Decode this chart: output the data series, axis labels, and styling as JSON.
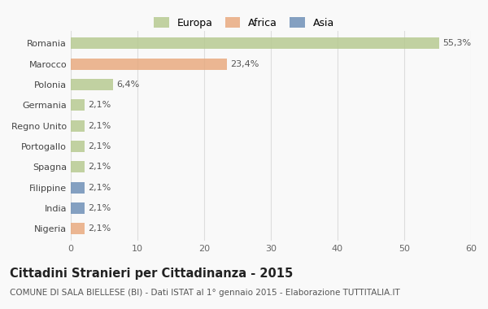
{
  "categories": [
    "Romania",
    "Marocco",
    "Polonia",
    "Germania",
    "Regno Unito",
    "Portogallo",
    "Spagna",
    "Filippine",
    "India",
    "Nigeria"
  ],
  "values": [
    55.3,
    23.4,
    6.4,
    2.1,
    2.1,
    2.1,
    2.1,
    2.1,
    2.1,
    2.1
  ],
  "labels": [
    "55,3%",
    "23,4%",
    "6,4%",
    "2,1%",
    "2,1%",
    "2,1%",
    "2,1%",
    "2,1%",
    "2,1%",
    "2,1%"
  ],
  "colors": [
    "#b5c98e",
    "#e8a87c",
    "#b5c98e",
    "#b5c98e",
    "#b5c98e",
    "#b5c98e",
    "#b5c98e",
    "#6b8db5",
    "#6b8db5",
    "#e8a87c"
  ],
  "legend_labels": [
    "Europa",
    "Africa",
    "Asia"
  ],
  "legend_colors": [
    "#b5c98e",
    "#e8a87c",
    "#6b8db5"
  ],
  "title": "Cittadini Stranieri per Cittadinanza - 2015",
  "subtitle": "COMUNE DI SALA BIELLESE (BI) - Dati ISTAT al 1° gennaio 2015 - Elaborazione TUTTITALIA.IT",
  "xlim": [
    0,
    60
  ],
  "xticks": [
    0,
    10,
    20,
    30,
    40,
    50,
    60
  ],
  "background_color": "#f9f9f9",
  "grid_color": "#dddddd",
  "bar_height": 0.55,
  "title_fontsize": 10.5,
  "subtitle_fontsize": 7.5,
  "label_fontsize": 8,
  "tick_fontsize": 8
}
